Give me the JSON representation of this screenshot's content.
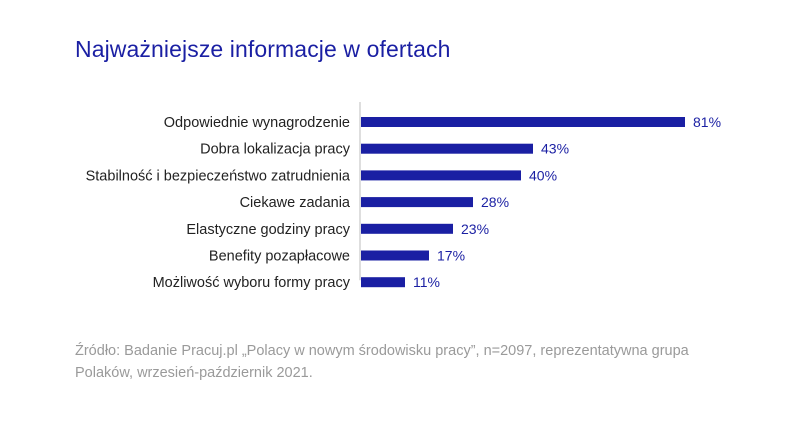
{
  "chart_data": {
    "type": "bar",
    "orientation": "horizontal",
    "title": "Najważniejsze informacje w ofertach",
    "categories": [
      "Odpowiednie wynagrodzenie",
      "Dobra lokalizacja pracy",
      "Stabilność i bezpieczeństwo zatrudnienia",
      "Ciekawe zadania",
      "Elastyczne godziny pracy",
      "Benefity pozapłacowe",
      "Możliwość wyboru formy pracy"
    ],
    "values": [
      81,
      43,
      40,
      28,
      23,
      17,
      11
    ],
    "value_labels": [
      "81%",
      "43%",
      "40%",
      "28%",
      "23%",
      "17%",
      "11%"
    ],
    "unit": "%",
    "xlim": [
      0,
      100
    ],
    "grid": false,
    "bar_color": "#1a1fa3",
    "label_color": "#1a1fa3"
  },
  "source": "Źródło: Badanie Pracuj.pl „Polacy w nowym środowisku pracy”, n=2097, reprezentatywna grupa Polaków, wrzesień-październik 2021."
}
